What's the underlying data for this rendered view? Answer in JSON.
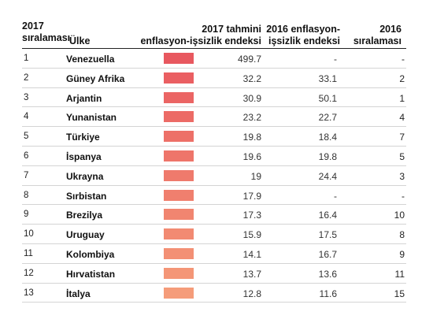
{
  "header": {
    "rank_2017": "2017\nsıralaması",
    "country": "Ülke",
    "index_2017": "2017 tahmini\nenflasyon-işsizlik endeksi",
    "index_2016": "2016 enflasyon-\nişsizlik endeksi",
    "rank_2016": "2016\nsıralaması"
  },
  "chart_data": {
    "type": "table",
    "columns": [
      "2017 sıralaması",
      "Ülke",
      "2017 tahmini enflasyon-işsizlik endeksi",
      "2016 enflasyon-işsizlik endeksi",
      "2016 sıralaması"
    ],
    "rows": [
      {
        "rank": "1",
        "country": "Venezuella",
        "idx2017": "499.7",
        "idx2016": "-",
        "rank2016": "-",
        "color": "#e8585f"
      },
      {
        "rank": "2",
        "country": "Güney Afrika",
        "idx2017": "32.2",
        "idx2016": "33.1",
        "rank2016": "2",
        "color": "#ea5f62"
      },
      {
        "rank": "3",
        "country": "Arjantin",
        "idx2017": "30.9",
        "idx2016": "50.1",
        "rank2016": "1",
        "color": "#eb6564"
      },
      {
        "rank": "4",
        "country": "Yunanistan",
        "idx2017": "23.2",
        "idx2016": "22.7",
        "rank2016": "4",
        "color": "#ec6b66"
      },
      {
        "rank": "5",
        "country": "Türkiye",
        "idx2017": "19.8",
        "idx2016": "18.4",
        "rank2016": "7",
        "color": "#ed7068"
      },
      {
        "rank": "6",
        "country": "İspanya",
        "idx2017": "19.6",
        "idx2016": "19.8",
        "rank2016": "5",
        "color": "#ee756a"
      },
      {
        "rank": "7",
        "country": "Ukrayna",
        "idx2017": "19",
        "idx2016": "24.4",
        "rank2016": "3",
        "color": "#ef7a6c"
      },
      {
        "rank": "8",
        "country": "Sırbistan",
        "idx2017": "17.9",
        "idx2016": "-",
        "rank2016": "-",
        "color": "#f07f6e"
      },
      {
        "rank": "9",
        "country": "Brezilya",
        "idx2017": "17.3",
        "idx2016": "16.4",
        "rank2016": "10",
        "color": "#f18570"
      },
      {
        "rank": "10",
        "country": "Uruguay",
        "idx2017": "15.9",
        "idx2016": "17.5",
        "rank2016": "8",
        "color": "#f28a72"
      },
      {
        "rank": "11",
        "country": "Kolombiya",
        "idx2017": "14.1",
        "idx2016": "16.7",
        "rank2016": "9",
        "color": "#f39075"
      },
      {
        "rank": "12",
        "country": "Hırvatistan",
        "idx2017": "13.7",
        "idx2016": "13.6",
        "rank2016": "11",
        "color": "#f49677"
      },
      {
        "rank": "13",
        "country": "İtalya",
        "idx2017": "12.8",
        "idx2016": "11.6",
        "rank2016": "15",
        "color": "#f59c7a"
      }
    ]
  }
}
